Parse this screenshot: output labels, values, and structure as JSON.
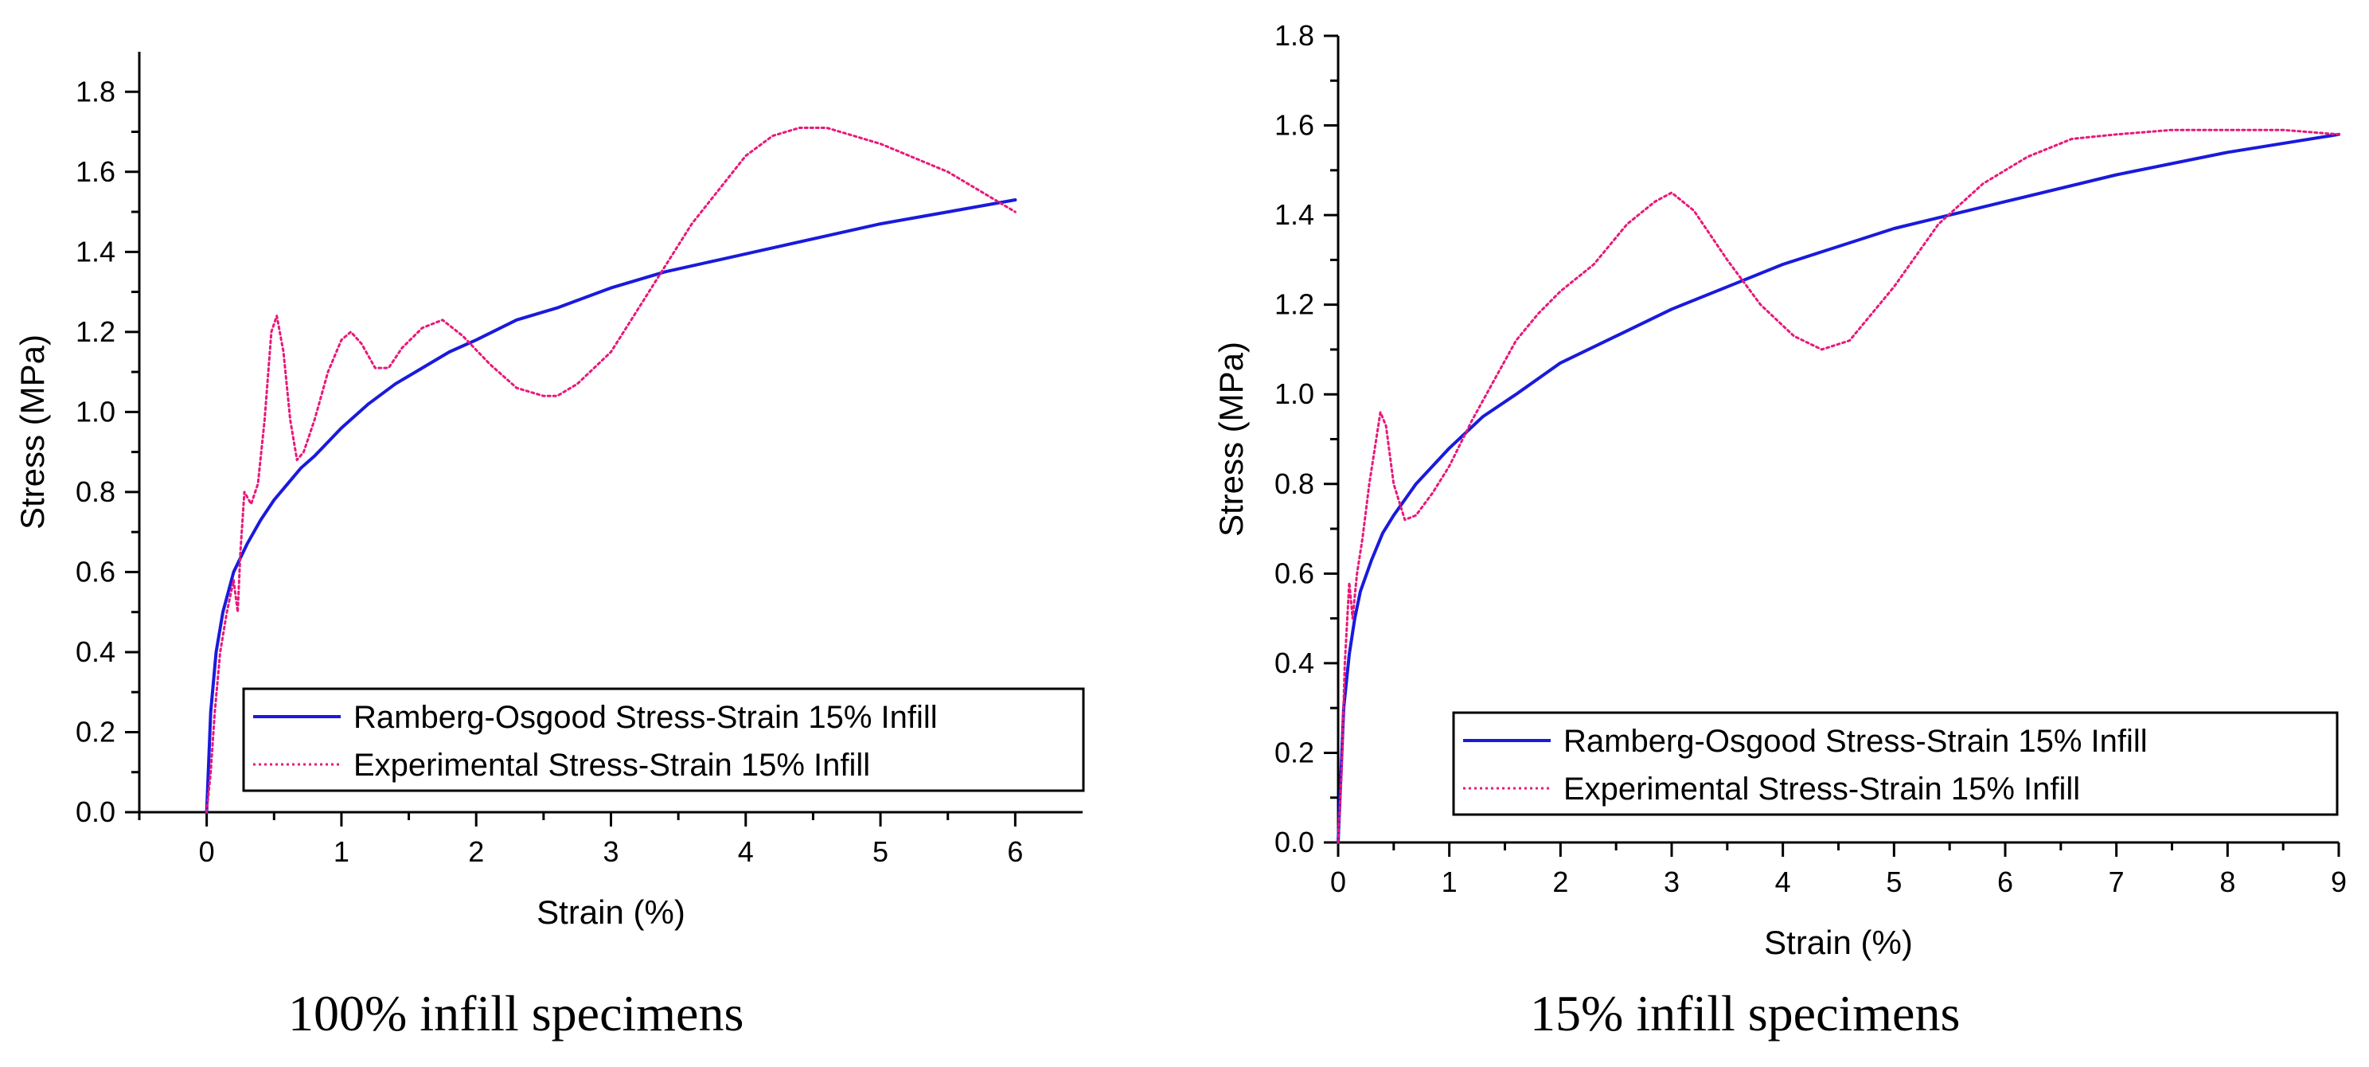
{
  "figure": {
    "captions": [
      "100% infill specimens",
      "15% infill specimens"
    ]
  },
  "chart_data": [
    {
      "type": "line",
      "title": "",
      "caption": "100% infill specimens",
      "xlabel": "Strain (%)",
      "ylabel": "Stress (MPa)",
      "xlim": [
        -0.5,
        6.5
      ],
      "ylim": [
        0,
        1.9
      ],
      "xticks": [
        0,
        1,
        2,
        3,
        4,
        5,
        6
      ],
      "yticks": [
        0.0,
        0.2,
        0.4,
        0.6,
        0.8,
        1.0,
        1.2,
        1.4,
        1.6,
        1.8
      ],
      "ytick_labels": [
        "0.0",
        "0.2",
        "0.4",
        "0.6",
        "0.8",
        "1.0",
        "1.2",
        "1.4",
        "1.6",
        "1.8"
      ],
      "legend_position": "bottom-right",
      "series": [
        {
          "name": "Ramberg-Osgood Stress-Strain 15% Infill",
          "color": "#1a1adc",
          "style": "solid",
          "x": [
            0,
            0.03,
            0.07,
            0.12,
            0.2,
            0.3,
            0.4,
            0.5,
            0.6,
            0.7,
            0.8,
            1.0,
            1.2,
            1.4,
            1.6,
            1.8,
            2.0,
            2.3,
            2.6,
            3.0,
            3.4,
            3.8,
            4.2,
            4.6,
            5.0,
            5.5,
            6.0
          ],
          "y": [
            0,
            0.25,
            0.4,
            0.5,
            0.6,
            0.67,
            0.73,
            0.78,
            0.82,
            0.86,
            0.89,
            0.96,
            1.02,
            1.07,
            1.11,
            1.15,
            1.18,
            1.23,
            1.26,
            1.31,
            1.35,
            1.38,
            1.41,
            1.44,
            1.47,
            1.5,
            1.53
          ]
        },
        {
          "name": "Experimental Stress-Strain 15% Infill",
          "color": "#e8197a",
          "style": "dotted",
          "x": [
            0,
            0.03,
            0.06,
            0.1,
            0.15,
            0.2,
            0.23,
            0.25,
            0.28,
            0.33,
            0.38,
            0.43,
            0.48,
            0.52,
            0.57,
            0.62,
            0.67,
            0.72,
            0.8,
            0.9,
            1.0,
            1.07,
            1.15,
            1.25,
            1.35,
            1.45,
            1.6,
            1.75,
            1.9,
            2.1,
            2.3,
            2.5,
            2.6,
            2.75,
            3.0,
            3.3,
            3.6,
            4.0,
            4.2,
            4.4,
            4.6,
            5.0,
            5.5,
            6.0
          ],
          "y": [
            0,
            0.1,
            0.25,
            0.4,
            0.5,
            0.58,
            0.5,
            0.65,
            0.8,
            0.77,
            0.82,
            0.98,
            1.2,
            1.24,
            1.15,
            0.98,
            0.88,
            0.9,
            0.98,
            1.1,
            1.18,
            1.2,
            1.17,
            1.11,
            1.11,
            1.16,
            1.21,
            1.23,
            1.19,
            1.12,
            1.06,
            1.04,
            1.04,
            1.07,
            1.15,
            1.31,
            1.47,
            1.64,
            1.69,
            1.71,
            1.71,
            1.67,
            1.6,
            1.5
          ]
        }
      ]
    },
    {
      "type": "line",
      "title": "",
      "caption": "15% infill specimens",
      "xlabel": "Strain (%)",
      "ylabel": "Stress (MPa)",
      "xlim": [
        0,
        9
      ],
      "ylim": [
        0,
        1.8
      ],
      "xticks": [
        0,
        1,
        2,
        3,
        4,
        5,
        6,
        7,
        8,
        9
      ],
      "yticks": [
        0.0,
        0.2,
        0.4,
        0.6,
        0.8,
        1.0,
        1.2,
        1.4,
        1.6,
        1.8
      ],
      "ytick_labels": [
        "0.0",
        "0.2",
        "0.4",
        "0.6",
        "0.8",
        "1.0",
        "1.2",
        "1.4",
        "1.6",
        "1.8"
      ],
      "legend_position": "bottom-right",
      "series": [
        {
          "name": "Ramberg-Osgood Stress-Strain 15% Infill",
          "color": "#1a1adc",
          "style": "solid",
          "x": [
            0,
            0.05,
            0.1,
            0.15,
            0.2,
            0.3,
            0.4,
            0.5,
            0.7,
            1.0,
            1.3,
            1.6,
            2.0,
            2.5,
            3.0,
            3.5,
            4.0,
            4.5,
            5.0,
            5.5,
            6.0,
            7.0,
            8.0,
            9.0
          ],
          "y": [
            0,
            0.3,
            0.42,
            0.5,
            0.56,
            0.63,
            0.69,
            0.73,
            0.8,
            0.88,
            0.95,
            1.0,
            1.07,
            1.13,
            1.19,
            1.24,
            1.29,
            1.33,
            1.37,
            1.4,
            1.43,
            1.49,
            1.54,
            1.58
          ]
        },
        {
          "name": "Experimental Stress-Strain 15% Infill",
          "color": "#e8197a",
          "style": "dotted",
          "x": [
            0,
            0.03,
            0.06,
            0.1,
            0.13,
            0.17,
            0.22,
            0.28,
            0.33,
            0.38,
            0.43,
            0.5,
            0.6,
            0.7,
            0.85,
            1.0,
            1.2,
            1.4,
            1.6,
            1.8,
            2.0,
            2.3,
            2.6,
            2.85,
            3.0,
            3.2,
            3.5,
            3.8,
            4.1,
            4.35,
            4.6,
            5.0,
            5.4,
            5.8,
            6.2,
            6.6,
            7.0,
            7.5,
            8.0,
            8.5,
            9.0
          ],
          "y": [
            0,
            0.15,
            0.4,
            0.58,
            0.5,
            0.6,
            0.68,
            0.8,
            0.88,
            0.96,
            0.93,
            0.8,
            0.72,
            0.73,
            0.78,
            0.84,
            0.94,
            1.03,
            1.12,
            1.18,
            1.23,
            1.29,
            1.38,
            1.43,
            1.45,
            1.41,
            1.3,
            1.2,
            1.13,
            1.1,
            1.12,
            1.24,
            1.38,
            1.47,
            1.53,
            1.57,
            1.58,
            1.59,
            1.59,
            1.59,
            1.58
          ]
        }
      ]
    }
  ]
}
